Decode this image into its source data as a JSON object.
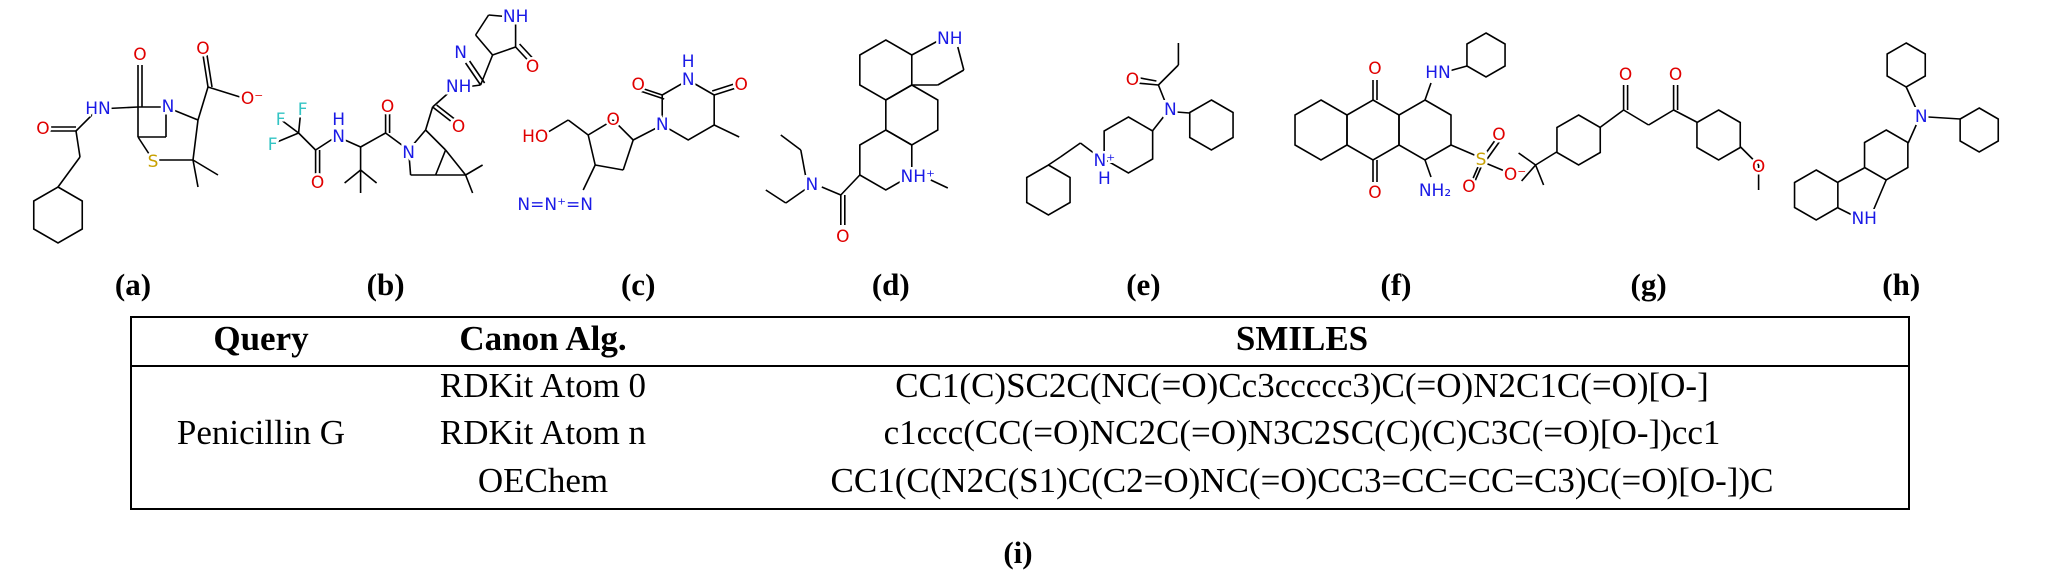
{
  "molecules": [
    {
      "caption": "(a)",
      "labels": [
        "O",
        "HN",
        "O",
        "N",
        "O",
        "O⁻",
        "S"
      ]
    },
    {
      "caption": "(b)",
      "labels": [
        "F",
        "F",
        "F",
        "O",
        "N",
        "H",
        "O",
        "N",
        "O",
        "NH",
        "N",
        "NH",
        "O"
      ]
    },
    {
      "caption": "(c)",
      "labels": [
        "O",
        "N",
        "H",
        "O",
        "N",
        "HO",
        "O",
        "N=N⁺=N"
      ]
    },
    {
      "caption": "(d)",
      "labels": [
        "NH",
        "NH⁺",
        "O",
        "N"
      ]
    },
    {
      "caption": "(e)",
      "labels": [
        "O",
        "N",
        "N⁺",
        "H"
      ]
    },
    {
      "caption": "(f)",
      "labels": [
        "O",
        "O",
        "HN",
        "NH₂",
        "S",
        "O",
        "O",
        "O⁻"
      ]
    },
    {
      "caption": "(g)",
      "labels": [
        "O",
        "O",
        "O"
      ]
    },
    {
      "caption": "(h)",
      "labels": [
        "N",
        "NH"
      ]
    }
  ],
  "table": {
    "header": [
      "Query",
      "Canon Alg.",
      "SMILES"
    ],
    "query": "Penicillin G",
    "rows": [
      {
        "algorithm": "RDKit Atom 0",
        "smiles": "CC1(C)SC2C(NC(=O)Cc3ccccc3)C(=O)N2C1C(=O)[O-]"
      },
      {
        "algorithm": "RDKit Atom n",
        "smiles": "c1ccc(CC(=O)NC2C(=O)N3C2SC(C)(C)C3C(=O)[O-])cc1"
      },
      {
        "algorithm": "OEChem",
        "smiles": "CC1(C(N2C(S1)C(C2=O)NC(=O)CC3=CC=CC=C3)C(=O)[O-])C"
      }
    ],
    "caption": "(i)"
  }
}
